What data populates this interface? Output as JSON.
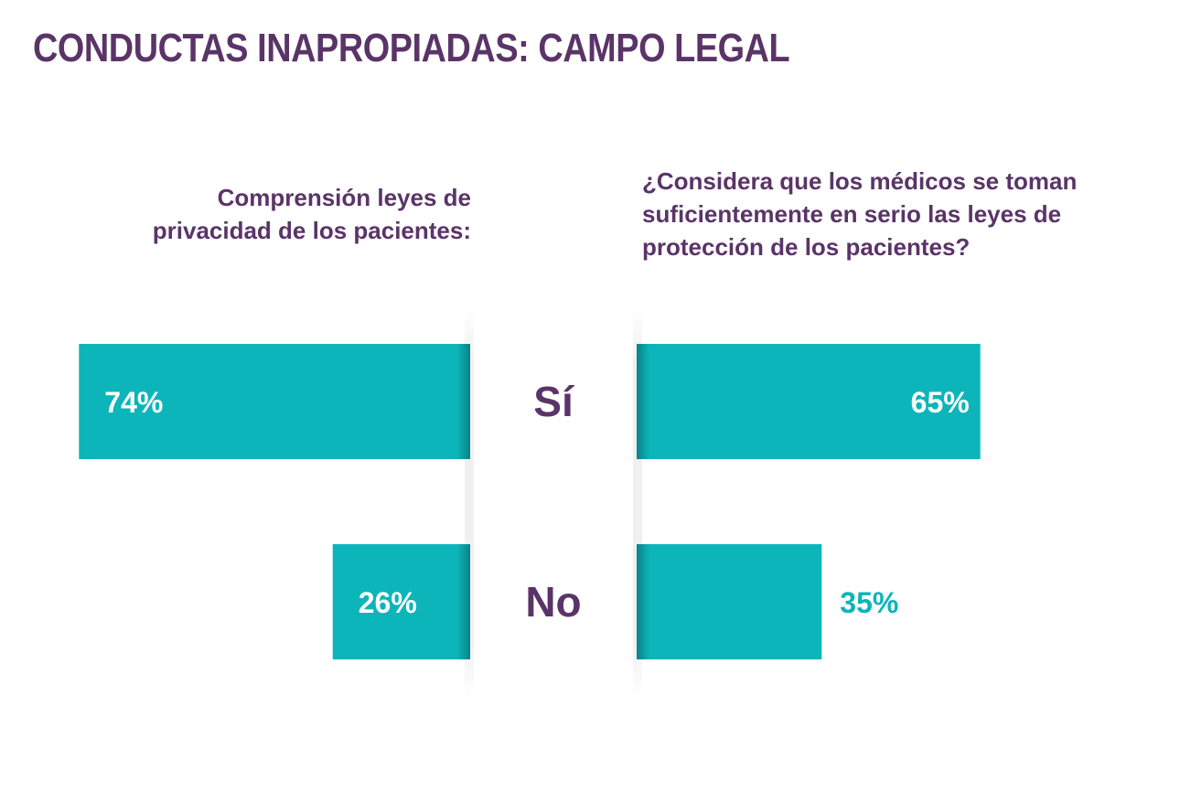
{
  "title": "CONDUCTAS INAPROPIADAS: CAMPO LEGAL",
  "colors": {
    "bar": "#0cb5b9",
    "text": "#5a3468"
  },
  "chart_data": [
    {
      "type": "bar",
      "orientation": "horizontal",
      "direction": "leftward",
      "title": "Comprensión leyes de privacidad de los pacientes:",
      "categories": [
        "Sí",
        "No"
      ],
      "values": [
        74,
        26
      ],
      "value_labels": [
        "74%",
        "26%"
      ],
      "xlim": [
        0,
        100
      ]
    },
    {
      "type": "bar",
      "orientation": "horizontal",
      "direction": "rightward",
      "title": "¿Considera que los médicos se toman suficientemente en serio las leyes de protección de los pacientes?",
      "categories": [
        "Sí",
        "No"
      ],
      "values": [
        65,
        35
      ],
      "value_labels": [
        "65%",
        "35%"
      ],
      "xlim": [
        0,
        100
      ]
    }
  ]
}
